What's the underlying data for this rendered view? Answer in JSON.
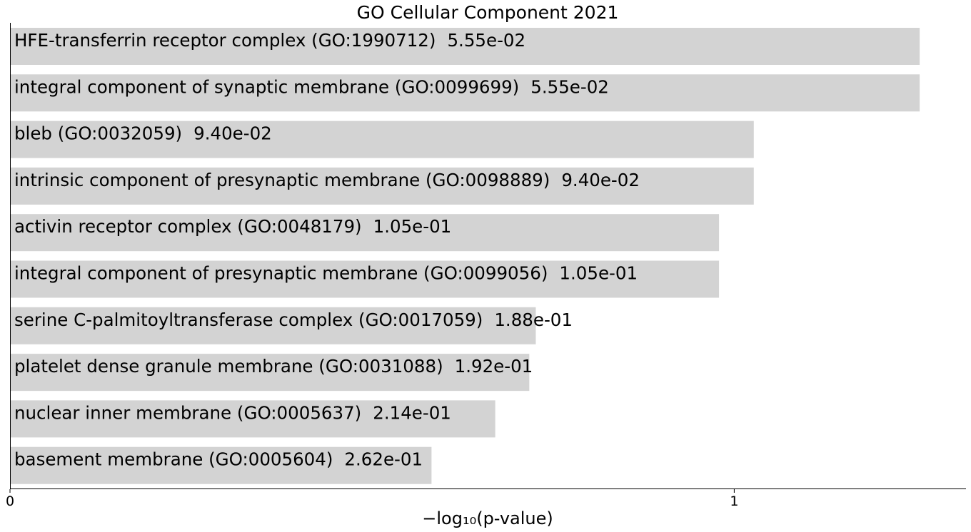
{
  "chart_data": {
    "type": "bar",
    "orientation": "horizontal",
    "title": "GO Cellular Component 2021",
    "xlabel": "−log₁₀(p-value)",
    "ylabel": "",
    "xlim": [
      0,
      1.32
    ],
    "xticks": [
      "0",
      "1"
    ],
    "xtick_values": [
      0,
      1
    ],
    "grid": false,
    "bar_color": "#d3d3d3",
    "categories": [
      "HFE-transferrin receptor complex (GO:1990712)",
      "integral component of synaptic membrane (GO:0099699)",
      "bleb (GO:0032059)",
      "intrinsic component of presynaptic membrane (GO:0098889)",
      "activin receptor complex (GO:0048179)",
      "integral component of presynaptic membrane (GO:0099056)",
      "serine C-palmitoyltransferase complex (GO:0017059)",
      "platelet dense granule membrane (GO:0031088)",
      "nuclear inner membrane (GO:0005637)",
      "basement membrane (GO:0005604)"
    ],
    "pvalue_labels": [
      "5.55e-02",
      "5.55e-02",
      "9.40e-02",
      "9.40e-02",
      "1.05e-01",
      "1.05e-01",
      "1.88e-01",
      "1.92e-01",
      "2.14e-01",
      "2.62e-01"
    ],
    "values": [
      1.256,
      1.256,
      1.027,
      1.027,
      0.979,
      0.979,
      0.726,
      0.717,
      0.67,
      0.582
    ]
  }
}
